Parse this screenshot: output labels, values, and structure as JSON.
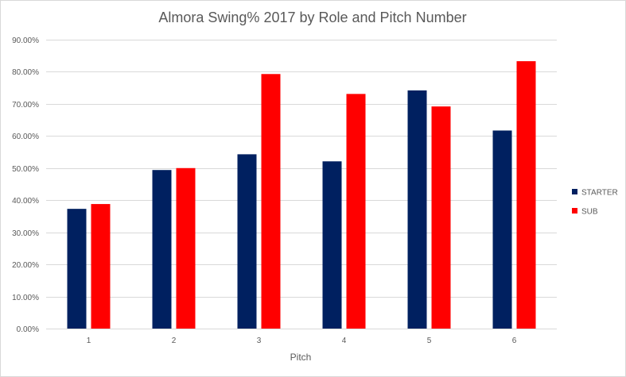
{
  "chart_data": {
    "type": "bar",
    "title": "Almora Swing% 2017 by Role and Pitch Number",
    "xlabel": "Pitch",
    "ylabel": "",
    "categories": [
      "1",
      "2",
      "3",
      "4",
      "5",
      "6"
    ],
    "series": [
      {
        "name": "STARTER",
        "color": "#002060",
        "values": [
          0.373,
          0.494,
          0.543,
          0.521,
          0.742,
          0.617
        ]
      },
      {
        "name": "SUB",
        "color": "#ff0000",
        "values": [
          0.388,
          0.5,
          0.793,
          0.731,
          0.692,
          0.833
        ]
      }
    ],
    "ylim": [
      0,
      0.9
    ],
    "yticks": [
      0,
      0.1,
      0.2,
      0.3,
      0.4,
      0.5,
      0.6,
      0.7,
      0.8,
      0.9
    ],
    "ytick_labels": [
      "0.00%",
      "10.00%",
      "20.00%",
      "30.00%",
      "40.00%",
      "50.00%",
      "60.00%",
      "70.00%",
      "80.00%",
      "90.00%"
    ],
    "grid": true,
    "gridline_color": "#d9d9d9",
    "legend_position": "right"
  }
}
